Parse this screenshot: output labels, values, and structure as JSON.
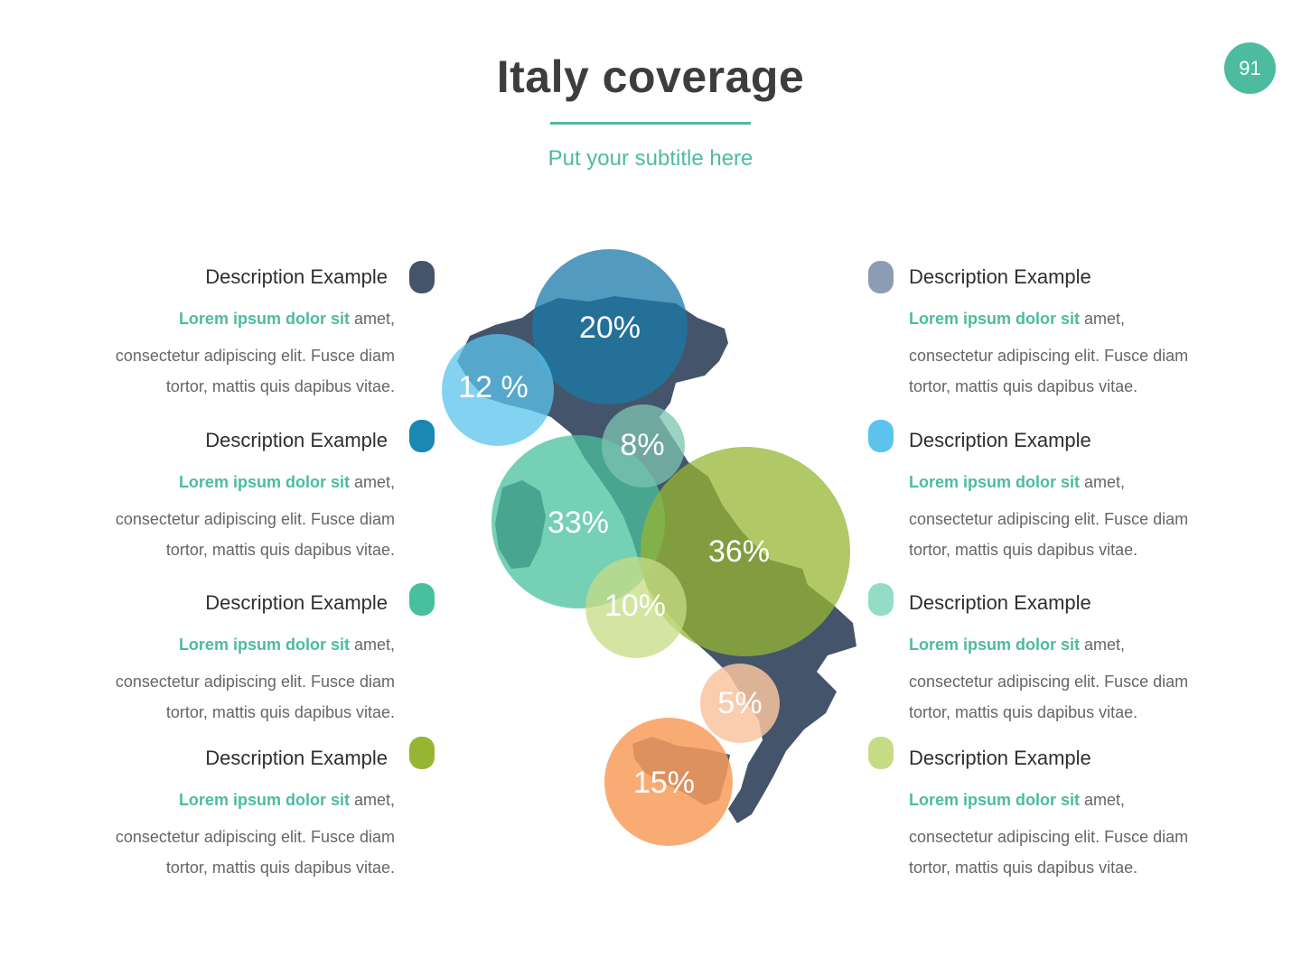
{
  "page": {
    "title": "Italy coverage",
    "subtitle": "Put your subtitle here",
    "page_number": "91"
  },
  "descriptions_left": [
    {
      "heading": "Description Example",
      "lead_bold": "Lorem ipsum dolor sit",
      "lead_rest": " amet,",
      "line2": "consectetur adipiscing elit. Fusce diam",
      "line3": "tortor, mattis quis dapibus vitae.",
      "color": "#44546a"
    },
    {
      "heading": "Description Example",
      "lead_bold": "Lorem ipsum dolor sit",
      "lead_rest": " amet,",
      "line2": "consectetur adipiscing elit. Fusce diam",
      "line3": "tortor, mattis quis dapibus vitae.",
      "color": "#1a87b4"
    },
    {
      "heading": "Description Example",
      "lead_bold": "Lorem ipsum dolor sit",
      "lead_rest": " amet,",
      "line2": "consectetur adipiscing elit. Fusce diam",
      "line3": "tortor, mattis quis dapibus vitae.",
      "color": "#48c09e"
    },
    {
      "heading": "Description Example",
      "lead_bold": "Lorem ipsum dolor sit",
      "lead_rest": " amet,",
      "line2": "consectetur adipiscing elit. Fusce diam",
      "line3": "tortor, mattis quis dapibus vitae.",
      "color": "#96b633"
    }
  ],
  "descriptions_right": [
    {
      "heading": "Description Example",
      "lead_bold": "Lorem ipsum dolor sit",
      "lead_rest": " amet,",
      "line2": "consectetur adipiscing elit. Fusce diam",
      "line3": "tortor, mattis quis dapibus vitae.",
      "color": "#8c9cb4"
    },
    {
      "heading": "Description Example",
      "lead_bold": "Lorem ipsum dolor sit",
      "lead_rest": " amet,",
      "line2": "consectetur adipiscing elit. Fusce diam",
      "line3": "tortor, mattis quis dapibus vitae.",
      "color": "#5bc3ec"
    },
    {
      "heading": "Description Example",
      "lead_bold": "Lorem ipsum dolor sit",
      "lead_rest": " amet,",
      "line2": "consectetur adipiscing elit. Fusce diam",
      "line3": "tortor, mattis quis dapibus vitae.",
      "color": "#94dcc6"
    },
    {
      "heading": "Description Example",
      "lead_bold": "Lorem ipsum dolor sit",
      "lead_rest": " amet,",
      "line2": "consectetur adipiscing elit. Fusce diam",
      "line3": "tortor, mattis quis dapibus vitae.",
      "color": "#c6dc84"
    }
  ],
  "map": {
    "region": "Italy",
    "color": "#44546a"
  },
  "bubbles": [
    {
      "label": "20%",
      "color": "#1a7aa8"
    },
    {
      "label": "12 %",
      "color": "#5bc3ec"
    },
    {
      "label": "8%",
      "color": "#7cc4b2"
    },
    {
      "label": "33%",
      "color": "#48c09e"
    },
    {
      "label": "36%",
      "color": "#96b633"
    },
    {
      "label": "10%",
      "color": "#c6dc84"
    },
    {
      "label": "5%",
      "color": "#f8c4a0"
    },
    {
      "label": "15%",
      "color": "#f89c5c"
    }
  ]
}
